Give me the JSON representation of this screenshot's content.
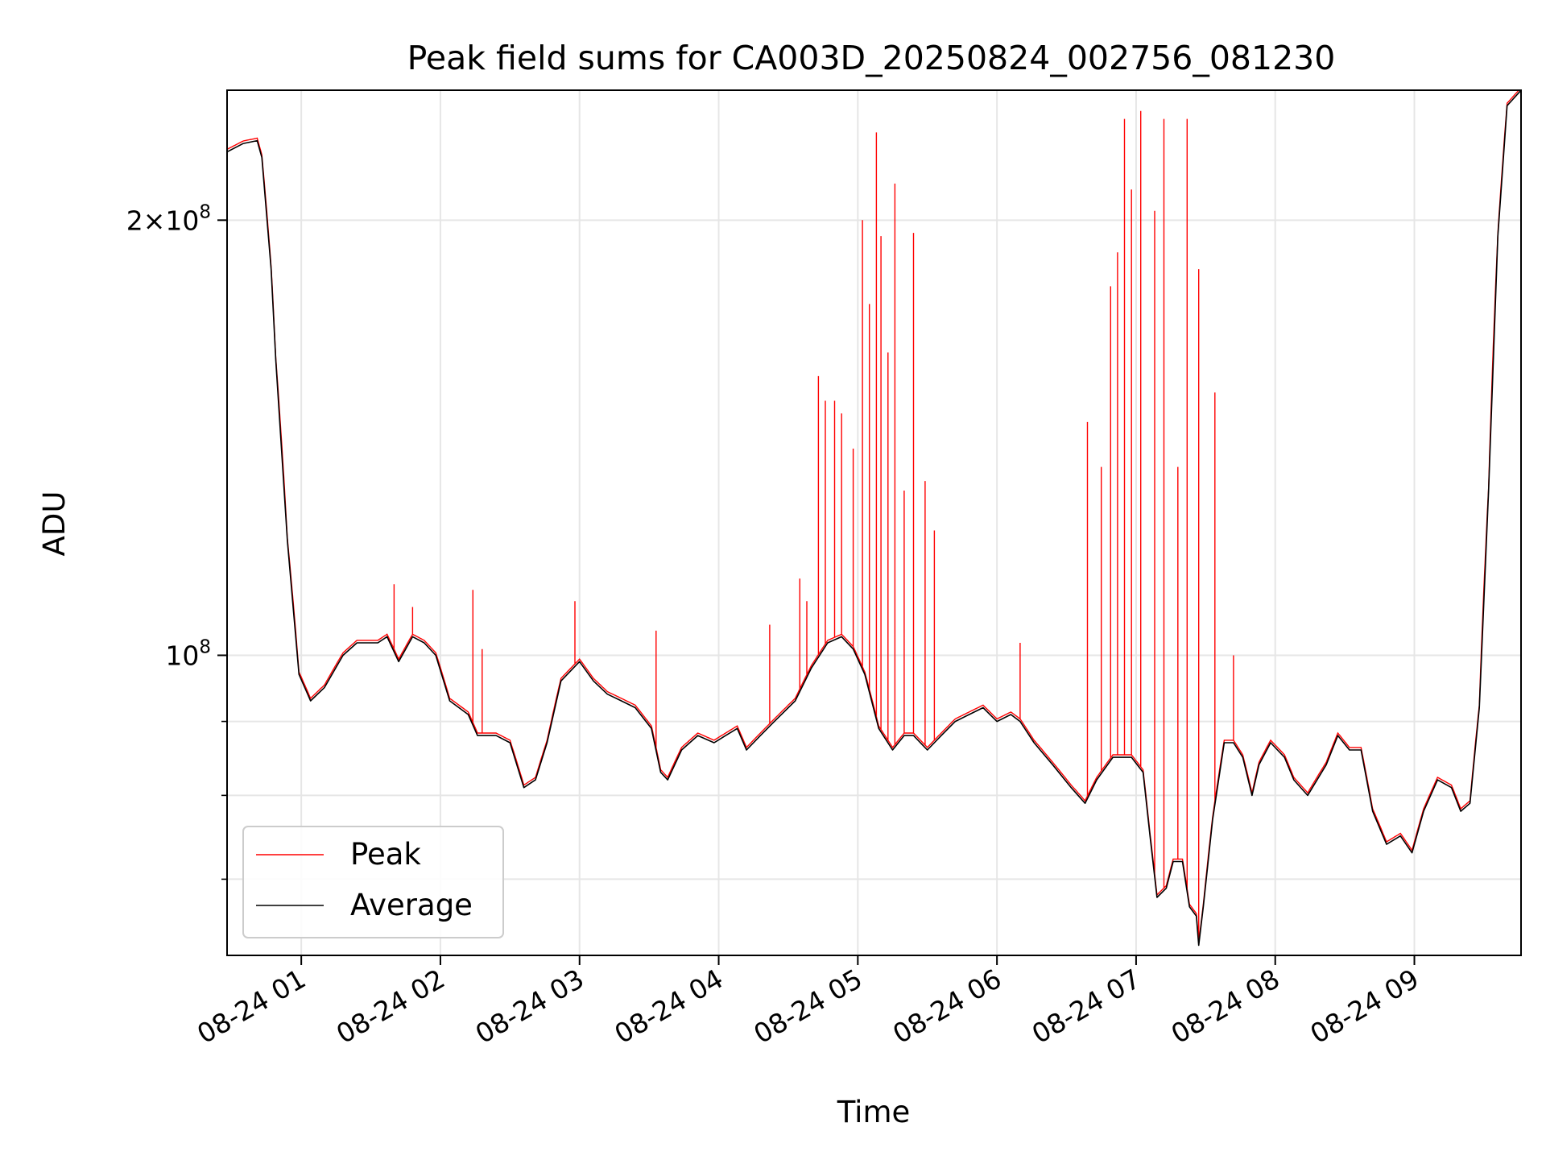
{
  "chart_data": {
    "type": "line",
    "title": "Peak field sums for CA003D_20250824_002756_081230",
    "xlabel": "Time",
    "ylabel": "ADU",
    "x_range": [
      "08-24 00:28",
      "08-24 09:46"
    ],
    "y_scale": "log",
    "y_range": [
      62000000,
      246000000
    ],
    "x_ticks": [
      "08-24 01",
      "08-24 02",
      "08-24 03",
      "08-24 04",
      "08-24 05",
      "08-24 06",
      "08-24 07",
      "08-24 08",
      "08-24 09"
    ],
    "y_ticks": [
      {
        "value": 100000000,
        "mant": "",
        "exp": "8"
      },
      {
        "value": 200000000,
        "mant": "2",
        "exp": "8"
      }
    ],
    "y_minor_ticks": [
      70000000,
      80000000,
      90000000
    ],
    "grid": true,
    "legend": {
      "position": "lower-left"
    },
    "series": [
      {
        "name": "Peak",
        "color": "#ff0000",
        "style": "line",
        "spikes": [
          [
            "01:40",
            112000000
          ],
          [
            "01:48",
            108000000
          ],
          [
            "02:14",
            111000000
          ],
          [
            "02:18",
            101000000
          ],
          [
            "02:58",
            109000000
          ],
          [
            "03:33",
            104000000
          ],
          [
            "04:22",
            105000000
          ],
          [
            "04:35",
            113000000
          ],
          [
            "04:38",
            109000000
          ],
          [
            "04:43",
            156000000
          ],
          [
            "04:46",
            150000000
          ],
          [
            "04:50",
            150000000
          ],
          [
            "04:53",
            147000000
          ],
          [
            "04:58",
            139000000
          ],
          [
            "05:02",
            200000000
          ],
          [
            "05:05",
            175000000
          ],
          [
            "05:08",
            230000000
          ],
          [
            "05:10",
            195000000
          ],
          [
            "05:13",
            162000000
          ],
          [
            "05:16",
            212000000
          ],
          [
            "05:20",
            130000000
          ],
          [
            "05:24",
            196000000
          ],
          [
            "05:29",
            132000000
          ],
          [
            "05:33",
            122000000
          ],
          [
            "06:10",
            102000000
          ],
          [
            "06:39",
            145000000
          ],
          [
            "06:45",
            135000000
          ],
          [
            "06:49",
            180000000
          ],
          [
            "06:52",
            190000000
          ],
          [
            "06:55",
            235000000
          ],
          [
            "06:58",
            210000000
          ],
          [
            "07:02",
            238000000
          ],
          [
            "07:08",
            203000000
          ],
          [
            "07:12",
            235000000
          ],
          [
            "07:18",
            135000000
          ],
          [
            "07:22",
            235000000
          ],
          [
            "07:27",
            185000000
          ],
          [
            "07:34",
            152000000
          ],
          [
            "07:42",
            100000000
          ]
        ]
      },
      {
        "name": "Average",
        "color": "#000000",
        "style": "line",
        "points": [
          [
            "00:28",
            223000000
          ],
          [
            "00:35",
            226000000
          ],
          [
            "00:41",
            227000000
          ],
          [
            "00:43",
            221000000
          ],
          [
            "00:47",
            185000000
          ],
          [
            "00:49",
            160000000
          ],
          [
            "00:54",
            120000000
          ],
          [
            "00:59",
            97000000
          ],
          [
            "01:04",
            93000000
          ],
          [
            "01:10",
            95000000
          ],
          [
            "01:18",
            100000000
          ],
          [
            "01:24",
            102000000
          ],
          [
            "01:33",
            102000000
          ],
          [
            "01:37",
            103000000
          ],
          [
            "01:42",
            99000000
          ],
          [
            "01:48",
            103000000
          ],
          [
            "01:53",
            102000000
          ],
          [
            "01:58",
            100000000
          ],
          [
            "02:04",
            93000000
          ],
          [
            "02:12",
            91000000
          ],
          [
            "02:16",
            88000000
          ],
          [
            "02:24",
            88000000
          ],
          [
            "02:30",
            87000000
          ],
          [
            "02:36",
            81000000
          ],
          [
            "02:41",
            82000000
          ],
          [
            "02:46",
            87000000
          ],
          [
            "02:52",
            96000000
          ],
          [
            "03:00",
            99000000
          ],
          [
            "03:06",
            96000000
          ],
          [
            "03:12",
            94000000
          ],
          [
            "03:18",
            93000000
          ],
          [
            "03:24",
            92000000
          ],
          [
            "03:31",
            89000000
          ],
          [
            "03:35",
            83000000
          ],
          [
            "03:38",
            82000000
          ],
          [
            "03:44",
            86000000
          ],
          [
            "03:51",
            88000000
          ],
          [
            "03:58",
            87000000
          ],
          [
            "04:03",
            88000000
          ],
          [
            "04:08",
            89000000
          ],
          [
            "04:12",
            86000000
          ],
          [
            "04:18",
            88000000
          ],
          [
            "04:24",
            90000000
          ],
          [
            "04:33",
            93000000
          ],
          [
            "04:40",
            98000000
          ],
          [
            "04:47",
            102000000
          ],
          [
            "04:53",
            103000000
          ],
          [
            "04:58",
            101000000
          ],
          [
            "05:03",
            97000000
          ],
          [
            "05:09",
            89000000
          ],
          [
            "05:15",
            86000000
          ],
          [
            "05:20",
            88000000
          ],
          [
            "05:24",
            88000000
          ],
          [
            "05:30",
            86000000
          ],
          [
            "05:36",
            88000000
          ],
          [
            "05:42",
            90000000
          ],
          [
            "05:48",
            91000000
          ],
          [
            "05:54",
            92000000
          ],
          [
            "06:00",
            90000000
          ],
          [
            "06:06",
            91000000
          ],
          [
            "06:10",
            90000000
          ],
          [
            "06:16",
            87000000
          ],
          [
            "06:24",
            84000000
          ],
          [
            "06:32",
            81000000
          ],
          [
            "06:38",
            79000000
          ],
          [
            "06:43",
            82000000
          ],
          [
            "06:50",
            85000000
          ],
          [
            "06:58",
            85000000
          ],
          [
            "07:03",
            83000000
          ],
          [
            "07:06",
            75000000
          ],
          [
            "07:09",
            68000000
          ],
          [
            "07:13",
            69000000
          ],
          [
            "07:16",
            72000000
          ],
          [
            "07:20",
            72000000
          ],
          [
            "07:23",
            67000000
          ],
          [
            "07:26",
            66000000
          ],
          [
            "07:27",
            63000000
          ],
          [
            "07:29",
            67000000
          ],
          [
            "07:33",
            77000000
          ],
          [
            "07:38",
            87000000
          ],
          [
            "07:42",
            87000000
          ],
          [
            "07:46",
            85000000
          ],
          [
            "07:50",
            80000000
          ],
          [
            "07:53",
            84000000
          ],
          [
            "07:58",
            87000000
          ],
          [
            "08:04",
            85000000
          ],
          [
            "08:08",
            82000000
          ],
          [
            "08:14",
            80000000
          ],
          [
            "08:22",
            84000000
          ],
          [
            "08:27",
            88000000
          ],
          [
            "08:32",
            86000000
          ],
          [
            "08:37",
            86000000
          ],
          [
            "08:42",
            78000000
          ],
          [
            "08:48",
            74000000
          ],
          [
            "08:54",
            75000000
          ],
          [
            "08:59",
            73000000
          ],
          [
            "09:04",
            78000000
          ],
          [
            "09:10",
            82000000
          ],
          [
            "09:16",
            81000000
          ],
          [
            "09:20",
            78000000
          ],
          [
            "09:24",
            79000000
          ],
          [
            "09:28",
            92000000
          ],
          [
            "09:32",
            130000000
          ],
          [
            "09:36",
            195000000
          ],
          [
            "09:40",
            240000000
          ],
          [
            "09:46",
            246000000
          ]
        ]
      }
    ]
  }
}
